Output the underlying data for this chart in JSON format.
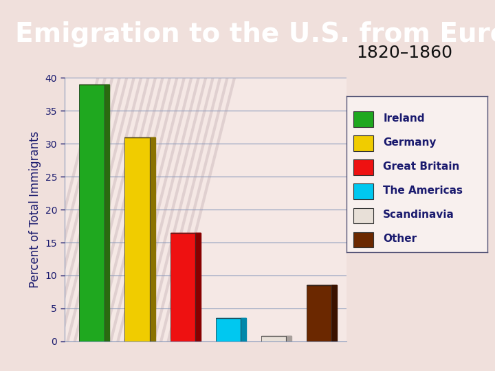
{
  "title": "Emigration to the U.S. from Europe",
  "subtitle": "1820–1860",
  "ylabel": "Percent of Total Immigrants",
  "categories": [
    "Ireland",
    "Germany",
    "Great Britain",
    "The Americas",
    "Scandinavia",
    "Other"
  ],
  "values": [
    39,
    31,
    16.5,
    3.5,
    0.8,
    8.5
  ],
  "bar_colors": [
    "#1fa81f",
    "#f0cc00",
    "#ee1111",
    "#00c8f0",
    "#e8e0d8",
    "#6b2800"
  ],
  "bar_side_colors": [
    "#2a6a10",
    "#8a7200",
    "#880000",
    "#0088aa",
    "#a8a09c",
    "#3a1200"
  ],
  "ylim": [
    0,
    40
  ],
  "yticks": [
    0,
    5,
    10,
    15,
    20,
    25,
    30,
    35,
    40
  ],
  "title_bg_color": "#c0392b",
  "title_text_color": "#ffffff",
  "plot_bg_color": "#f5e8e5",
  "fig_bg_color": "#f0e0dc",
  "grid_color": "#8899bb",
  "title_fontsize": 28,
  "subtitle_fontsize": 18,
  "ylabel_fontsize": 12,
  "legend_fontsize": 11,
  "bar_width": 0.55,
  "bar_3d_depth": 0.12
}
